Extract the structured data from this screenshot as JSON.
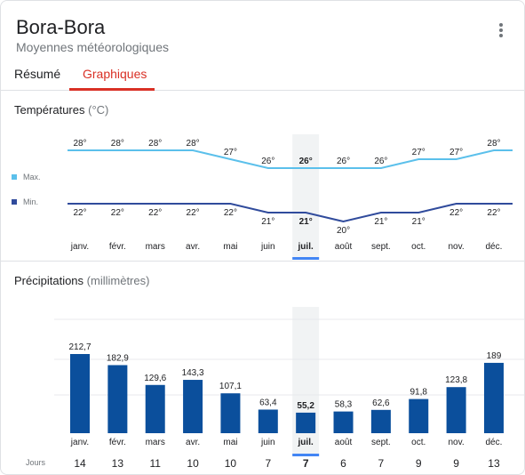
{
  "header": {
    "title": "Bora-Bora",
    "subtitle": "Moyennes météorologiques"
  },
  "tabs": [
    {
      "label": "Résumé",
      "active": false
    },
    {
      "label": "Graphiques",
      "active": true
    }
  ],
  "colors": {
    "max_line": "#5bc0eb",
    "min_line": "#304b9c",
    "bar": "#0b4f9c",
    "accent_tab": "#d93025",
    "highlight_col": "#f1f3f4",
    "selected_indicator": "#4285f4"
  },
  "selected_month_index": 6,
  "temperatures": {
    "title": "Températures",
    "unit": "(°C)",
    "legend": {
      "max": "Max.",
      "min": "Min."
    }
  },
  "precipitation": {
    "title": "Précipitations",
    "unit": "(millimètres)",
    "days_label": "Jours",
    "days": [
      "14",
      "13",
      "11",
      "10",
      "10",
      "7",
      "7",
      "6",
      "7",
      "9",
      "9",
      "13"
    ]
  },
  "chart_data": [
    {
      "type": "line",
      "categories": [
        "janv.",
        "févr.",
        "mars",
        "avr.",
        "mai",
        "juin",
        "juil.",
        "août",
        "sept.",
        "oct.",
        "nov.",
        "déc."
      ],
      "series": [
        {
          "name": "Max.",
          "values": [
            28,
            28,
            28,
            28,
            27,
            26,
            26,
            26,
            26,
            27,
            27,
            28
          ]
        },
        {
          "name": "Min.",
          "values": [
            22,
            22,
            22,
            22,
            22,
            21,
            21,
            20,
            21,
            21,
            22,
            22
          ]
        }
      ],
      "value_labels_max": [
        "28°",
        "28°",
        "28°",
        "28°",
        "27°",
        "26°",
        "26°",
        "26°",
        "26°",
        "27°",
        "27°",
        "28°"
      ],
      "value_labels_min": [
        "22°",
        "22°",
        "22°",
        "22°",
        "22°",
        "21°",
        "21°",
        "20°",
        "21°",
        "21°",
        "22°",
        "22°"
      ],
      "title": "Températures",
      "ylabel": "(°C)",
      "grid": false,
      "legend": "left"
    },
    {
      "type": "bar",
      "categories": [
        "janv.",
        "févr.",
        "mars",
        "avr.",
        "mai",
        "juin",
        "juil.",
        "août",
        "sept.",
        "oct.",
        "nov.",
        "déc."
      ],
      "values": [
        212.7,
        182.9,
        129.6,
        143.3,
        107.1,
        63.4,
        55.2,
        58.3,
        62.6,
        91.8,
        123.8,
        189
      ],
      "value_labels": [
        "212,7",
        "182,9",
        "129,6",
        "143,3",
        "107,1",
        "63,4",
        "55,2",
        "58,3",
        "62,6",
        "91,8",
        "123,8",
        "189"
      ],
      "title": "Précipitations",
      "ylabel": "(millimètres)",
      "grid": true
    }
  ]
}
